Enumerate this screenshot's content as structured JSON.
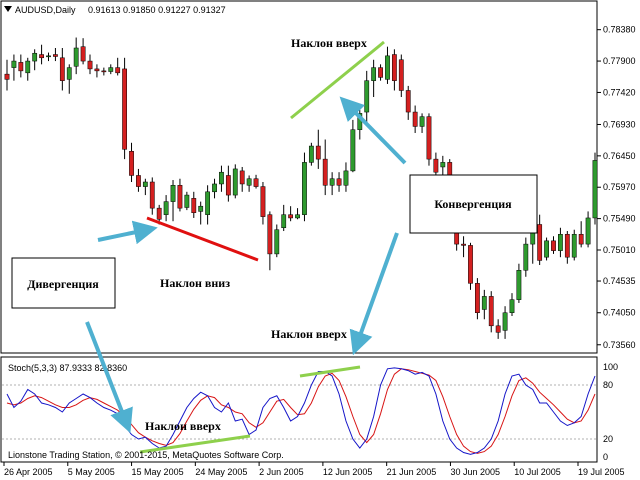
{
  "header": {
    "symbol": "AUDUSD,Daily",
    "ohlc": "0.91613 0.91850 0.91227 0.91327"
  },
  "indicator": {
    "name": "Stoch(5,3,3) 87.9333 82.8360",
    "levels": [
      "100",
      "80",
      "20",
      "0"
    ],
    "credit": "Lionstone Trading Station, © 2001-2015, MetaQuotes Software Corp."
  },
  "annotations": {
    "slope_up_top": "Наклон вверх",
    "slope_down": "Наклон вниз",
    "slope_up_middle": "Наклон вверх",
    "slope_up_osc": "Наклон вверх",
    "divergence": "Дивергенция",
    "convergence": "Конвергенция"
  },
  "colors": {
    "bull": "#2e9a2e",
    "bear": "#d42020",
    "stoch_main": "#1515c8",
    "stoch_signal": "#d81515",
    "trend_up": "#8ed04c",
    "trend_down": "#e01010",
    "arrow": "#4fb0d0"
  },
  "chart_data": {
    "type": "candlestick",
    "price_axis": [
      "0.78380",
      "0.77900",
      "0.77420",
      "0.76930",
      "0.76450",
      "0.75970",
      "0.75490",
      "0.75010",
      "0.74535",
      "0.74050",
      "0.73560"
    ],
    "date_axis": [
      "26 Apr 2005",
      "5 May 2005",
      "15 May 2005",
      "24 May 2005",
      "2 Jun 2005",
      "12 Jun 2005",
      "21 Jun 2005",
      "30 Jun 2005",
      "10 Jul 2005",
      "19 Jul 2005"
    ],
    "ylim": [
      0.7348,
      0.7862
    ],
    "candles": [
      {
        "o": 0.777,
        "h": 0.7792,
        "l": 0.7745,
        "c": 0.7762
      },
      {
        "o": 0.778,
        "h": 0.78,
        "l": 0.776,
        "c": 0.779
      },
      {
        "o": 0.7788,
        "h": 0.78,
        "l": 0.7765,
        "c": 0.7775
      },
      {
        "o": 0.7772,
        "h": 0.7795,
        "l": 0.776,
        "c": 0.779
      },
      {
        "o": 0.779,
        "h": 0.7808,
        "l": 0.7776,
        "c": 0.7802
      },
      {
        "o": 0.78,
        "h": 0.7815,
        "l": 0.7785,
        "c": 0.7795
      },
      {
        "o": 0.7797,
        "h": 0.7803,
        "l": 0.779,
        "c": 0.7798
      },
      {
        "o": 0.78,
        "h": 0.781,
        "l": 0.779,
        "c": 0.7797
      },
      {
        "o": 0.7795,
        "h": 0.781,
        "l": 0.7745,
        "c": 0.776
      },
      {
        "o": 0.7762,
        "h": 0.7785,
        "l": 0.774,
        "c": 0.778
      },
      {
        "o": 0.7782,
        "h": 0.7826,
        "l": 0.777,
        "c": 0.781
      },
      {
        "o": 0.7812,
        "h": 0.7825,
        "l": 0.7785,
        "c": 0.779
      },
      {
        "o": 0.779,
        "h": 0.78,
        "l": 0.777,
        "c": 0.7778
      },
      {
        "o": 0.7778,
        "h": 0.7785,
        "l": 0.7765,
        "c": 0.7775
      },
      {
        "o": 0.7775,
        "h": 0.778,
        "l": 0.7768,
        "c": 0.7774
      },
      {
        "o": 0.7774,
        "h": 0.7785,
        "l": 0.777,
        "c": 0.778
      },
      {
        "o": 0.778,
        "h": 0.7795,
        "l": 0.7768,
        "c": 0.7772
      },
      {
        "o": 0.7778,
        "h": 0.7795,
        "l": 0.764,
        "c": 0.7655
      },
      {
        "o": 0.7652,
        "h": 0.7665,
        "l": 0.7605,
        "c": 0.7615
      },
      {
        "o": 0.7615,
        "h": 0.7625,
        "l": 0.759,
        "c": 0.7598
      },
      {
        "o": 0.7598,
        "h": 0.761,
        "l": 0.7585,
        "c": 0.7605
      },
      {
        "o": 0.7605,
        "h": 0.7612,
        "l": 0.7555,
        "c": 0.7565
      },
      {
        "o": 0.7565,
        "h": 0.757,
        "l": 0.754,
        "c": 0.7548
      },
      {
        "o": 0.7555,
        "h": 0.7585,
        "l": 0.7545,
        "c": 0.7575
      },
      {
        "o": 0.7575,
        "h": 0.7608,
        "l": 0.7545,
        "c": 0.76
      },
      {
        "o": 0.76,
        "h": 0.761,
        "l": 0.756,
        "c": 0.7565
      },
      {
        "o": 0.7566,
        "h": 0.759,
        "l": 0.7562,
        "c": 0.7585
      },
      {
        "o": 0.758,
        "h": 0.759,
        "l": 0.755,
        "c": 0.7558
      },
      {
        "o": 0.756,
        "h": 0.7575,
        "l": 0.754,
        "c": 0.7568
      },
      {
        "o": 0.7555,
        "h": 0.76,
        "l": 0.754,
        "c": 0.759
      },
      {
        "o": 0.759,
        "h": 0.761,
        "l": 0.758,
        "c": 0.7602
      },
      {
        "o": 0.7602,
        "h": 0.763,
        "l": 0.759,
        "c": 0.762
      },
      {
        "o": 0.7615,
        "h": 0.763,
        "l": 0.7575,
        "c": 0.7585
      },
      {
        "o": 0.7585,
        "h": 0.7632,
        "l": 0.758,
        "c": 0.7625
      },
      {
        "o": 0.7622,
        "h": 0.7628,
        "l": 0.759,
        "c": 0.7602
      },
      {
        "o": 0.76,
        "h": 0.7615,
        "l": 0.759,
        "c": 0.761
      },
      {
        "o": 0.761,
        "h": 0.7616,
        "l": 0.7595,
        "c": 0.7598
      },
      {
        "o": 0.7598,
        "h": 0.7605,
        "l": 0.754,
        "c": 0.7552
      },
      {
        "o": 0.7555,
        "h": 0.756,
        "l": 0.747,
        "c": 0.7495
      },
      {
        "o": 0.7495,
        "h": 0.754,
        "l": 0.749,
        "c": 0.7532
      },
      {
        "o": 0.7535,
        "h": 0.757,
        "l": 0.753,
        "c": 0.7555
      },
      {
        "o": 0.7555,
        "h": 0.7568,
        "l": 0.7545,
        "c": 0.755
      },
      {
        "o": 0.755,
        "h": 0.7565,
        "l": 0.7548,
        "c": 0.7555
      },
      {
        "o": 0.7555,
        "h": 0.765,
        "l": 0.7545,
        "c": 0.7635
      },
      {
        "o": 0.7635,
        "h": 0.7665,
        "l": 0.763,
        "c": 0.766
      },
      {
        "o": 0.766,
        "h": 0.7685,
        "l": 0.7625,
        "c": 0.764
      },
      {
        "o": 0.764,
        "h": 0.767,
        "l": 0.7585,
        "c": 0.76
      },
      {
        "o": 0.76,
        "h": 0.762,
        "l": 0.7585,
        "c": 0.761
      },
      {
        "o": 0.761,
        "h": 0.762,
        "l": 0.759,
        "c": 0.76
      },
      {
        "o": 0.76,
        "h": 0.7635,
        "l": 0.759,
        "c": 0.7622
      },
      {
        "o": 0.7622,
        "h": 0.77,
        "l": 0.762,
        "c": 0.7685
      },
      {
        "o": 0.7685,
        "h": 0.7715,
        "l": 0.767,
        "c": 0.771
      },
      {
        "o": 0.7712,
        "h": 0.7775,
        "l": 0.7695,
        "c": 0.776
      },
      {
        "o": 0.776,
        "h": 0.7792,
        "l": 0.7735,
        "c": 0.778
      },
      {
        "o": 0.778,
        "h": 0.7785,
        "l": 0.776,
        "c": 0.7765
      },
      {
        "o": 0.7762,
        "h": 0.7812,
        "l": 0.7755,
        "c": 0.7798
      },
      {
        "o": 0.78,
        "h": 0.7808,
        "l": 0.7745,
        "c": 0.776
      },
      {
        "o": 0.7792,
        "h": 0.78,
        "l": 0.7735,
        "c": 0.7745
      },
      {
        "o": 0.7745,
        "h": 0.7752,
        "l": 0.77,
        "c": 0.7712
      },
      {
        "o": 0.7712,
        "h": 0.7722,
        "l": 0.768,
        "c": 0.769
      },
      {
        "o": 0.769,
        "h": 0.771,
        "l": 0.768,
        "c": 0.7705
      },
      {
        "o": 0.7705,
        "h": 0.771,
        "l": 0.763,
        "c": 0.764
      },
      {
        "o": 0.764,
        "h": 0.765,
        "l": 0.7612,
        "c": 0.762
      },
      {
        "o": 0.7628,
        "h": 0.7645,
        "l": 0.76,
        "c": 0.7635
      },
      {
        "o": 0.7635,
        "h": 0.764,
        "l": 0.756,
        "c": 0.7565
      },
      {
        "o": 0.7565,
        "h": 0.757,
        "l": 0.75,
        "c": 0.751
      },
      {
        "o": 0.751,
        "h": 0.7522,
        "l": 0.749,
        "c": 0.7508
      },
      {
        "o": 0.7508,
        "h": 0.7512,
        "l": 0.744,
        "c": 0.745
      },
      {
        "o": 0.745,
        "h": 0.7458,
        "l": 0.7395,
        "c": 0.7405
      },
      {
        "o": 0.741,
        "h": 0.744,
        "l": 0.7395,
        "c": 0.743
      },
      {
        "o": 0.743,
        "h": 0.7438,
        "l": 0.7375,
        "c": 0.7385
      },
      {
        "o": 0.7385,
        "h": 0.7395,
        "l": 0.7365,
        "c": 0.7375
      },
      {
        "o": 0.7378,
        "h": 0.7415,
        "l": 0.7365,
        "c": 0.7405
      },
      {
        "o": 0.7405,
        "h": 0.7435,
        "l": 0.74,
        "c": 0.7425
      },
      {
        "o": 0.7425,
        "h": 0.748,
        "l": 0.742,
        "c": 0.747
      },
      {
        "o": 0.747,
        "h": 0.752,
        "l": 0.746,
        "c": 0.751
      },
      {
        "o": 0.751,
        "h": 0.755,
        "l": 0.748,
        "c": 0.754
      },
      {
        "o": 0.754,
        "h": 0.7555,
        "l": 0.7478,
        "c": 0.7485
      },
      {
        "o": 0.749,
        "h": 0.752,
        "l": 0.7485,
        "c": 0.7515
      },
      {
        "o": 0.7515,
        "h": 0.7522,
        "l": 0.7495,
        "c": 0.75
      },
      {
        "o": 0.75,
        "h": 0.7535,
        "l": 0.749,
        "c": 0.7525
      },
      {
        "o": 0.7525,
        "h": 0.753,
        "l": 0.748,
        "c": 0.749
      },
      {
        "o": 0.749,
        "h": 0.7532,
        "l": 0.7485,
        "c": 0.7525
      },
      {
        "o": 0.7525,
        "h": 0.7545,
        "l": 0.7505,
        "c": 0.751
      },
      {
        "o": 0.751,
        "h": 0.756,
        "l": 0.7505,
        "c": 0.755
      },
      {
        "o": 0.755,
        "h": 0.765,
        "l": 0.754,
        "c": 0.7638
      }
    ],
    "stoch": {
      "ylim": [
        0,
        100
      ],
      "levels": [
        80,
        20
      ],
      "main": [
        70,
        55,
        62,
        75,
        70,
        60,
        58,
        55,
        50,
        60,
        65,
        70,
        66,
        60,
        55,
        52,
        48,
        35,
        25,
        20,
        22,
        15,
        10,
        12,
        25,
        40,
        55,
        65,
        72,
        68,
        55,
        50,
        60,
        40,
        42,
        25,
        30,
        55,
        65,
        68,
        55,
        40,
        45,
        60,
        80,
        95,
        95,
        90,
        70,
        40,
        20,
        10,
        20,
        45,
        80,
        98,
        99,
        98,
        96,
        92,
        94,
        90,
        70,
        40,
        20,
        10,
        5,
        3,
        5,
        10,
        20,
        40,
        70,
        90,
        92,
        80,
        75,
        60,
        60,
        50,
        40,
        35,
        38,
        45,
        70,
        90
      ],
      "signal": [
        60,
        58,
        60,
        65,
        68,
        66,
        62,
        58,
        55,
        55,
        58,
        63,
        66,
        64,
        60,
        56,
        52,
        45,
        36,
        27,
        22,
        18,
        15,
        13,
        16,
        26,
        40,
        53,
        63,
        68,
        66,
        58,
        55,
        50,
        48,
        38,
        33,
        38,
        50,
        62,
        64,
        55,
        47,
        48,
        60,
        78,
        90,
        93,
        85,
        67,
        45,
        25,
        16,
        25,
        48,
        75,
        92,
        98,
        97,
        95,
        93,
        91,
        85,
        67,
        45,
        25,
        12,
        6,
        4,
        6,
        12,
        25,
        45,
        68,
        85,
        88,
        82,
        72,
        65,
        58,
        50,
        42,
        38,
        40,
        52,
        70
      ]
    }
  }
}
